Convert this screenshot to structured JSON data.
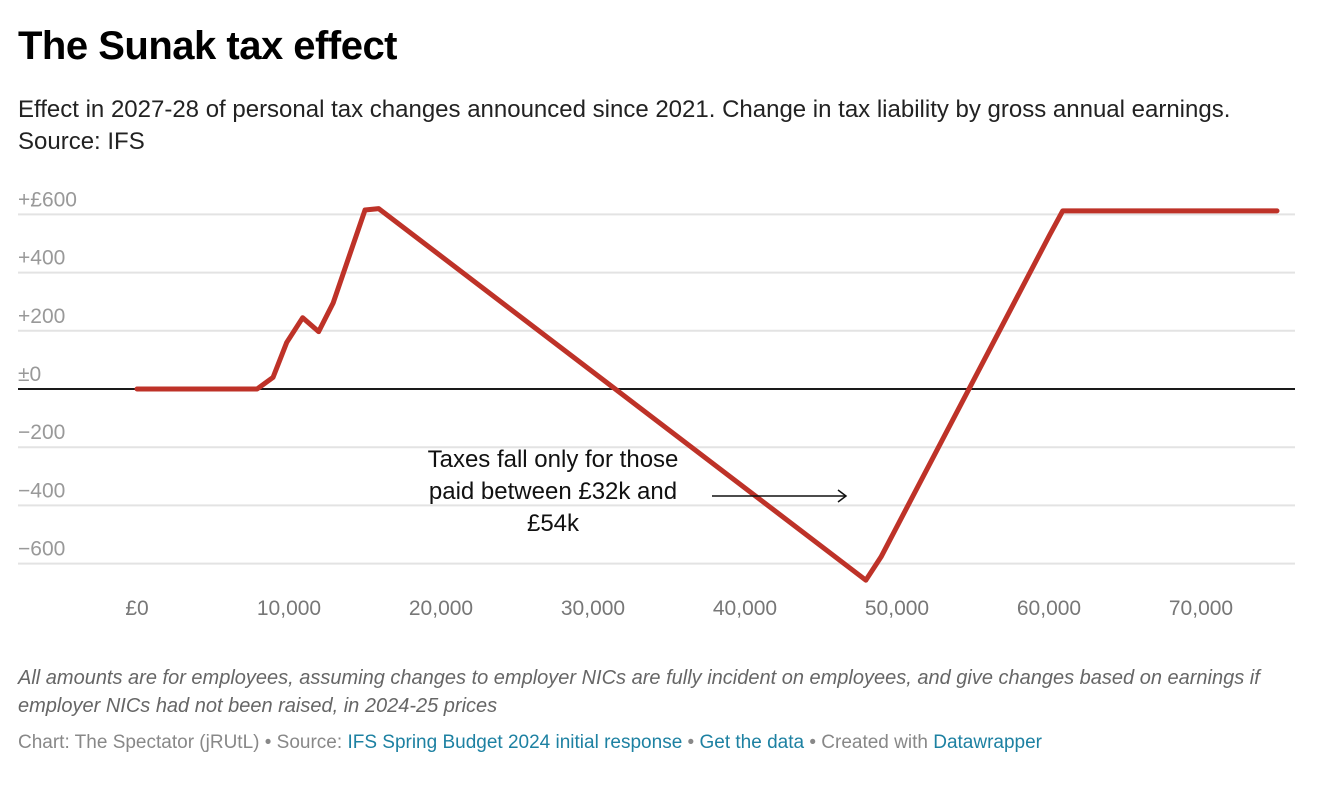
{
  "title": "The Sunak tax effect",
  "subtitle": "Effect in 2027-28 of personal tax changes announced since 2021. Change in tax liability by gross annual earnings. Source: IFS",
  "chart_data": {
    "type": "line",
    "title": "The Sunak tax effect",
    "xlabel": "",
    "ylabel": "",
    "xlim": [
      0,
      75000
    ],
    "ylim": [
      -660,
      660
    ],
    "grid": true,
    "x_ticks": [
      0,
      10000,
      20000,
      30000,
      40000,
      50000,
      60000,
      70000
    ],
    "x_tick_labels": [
      "£0",
      "10,000",
      "20,000",
      "30,000",
      "40,000",
      "50,000",
      "60,000",
      "70,000"
    ],
    "y_ticks": [
      600,
      400,
      200,
      0,
      -200,
      -400,
      -600
    ],
    "y_tick_labels": [
      "+£600",
      "+400",
      "+200",
      "±0",
      "−200",
      "−400",
      "−600"
    ],
    "line_color": "#be3228",
    "series": [
      {
        "x": [
          0,
          7900,
          8950,
          9850,
          10900,
          11950,
          12900,
          15000,
          15900,
          47950,
          48950,
          60050,
          60900,
          75000
        ],
        "y": [
          0,
          0,
          40,
          160,
          245,
          197,
          295,
          615,
          620,
          -657,
          -577,
          530,
          612,
          612
        ]
      }
    ],
    "annotation": {
      "text_lines": [
        "Taxes fall only for those",
        "paid between £32k and",
        "£54k"
      ],
      "arrow": true
    }
  },
  "notes": "All amounts are for employees, assuming changes to employer NICs are fully incident on employees, and give changes based on earnings if employer NICs had not been raised, in 2024-25 prices",
  "byline": {
    "chart_credit": "Chart: The Spectator (jRUtL)",
    "sep1": " • Source: ",
    "source_link": "IFS Spring Budget 2024 initial response",
    "sep2": "  • ",
    "data_link": "Get the data",
    "sep3": " • Created with ",
    "dw_link": "Datawrapper",
    "link_color": "#1d81a2"
  }
}
